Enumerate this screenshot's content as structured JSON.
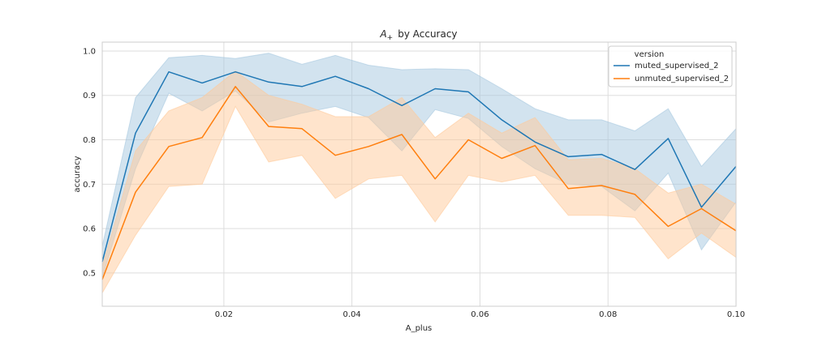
{
  "chart_data": {
    "type": "line",
    "title_main": "A",
    "title_sub": "+",
    "title_rest": "by Accuracy",
    "xlabel": "A_plus",
    "ylabel": "accuracy",
    "xlim": [
      0.001,
      0.1
    ],
    "ylim": [
      0.425,
      1.02
    ],
    "xticks": [
      0.02,
      0.04,
      0.06,
      0.08,
      0.1
    ],
    "xtick_labels": [
      "0.02",
      "0.04",
      "0.06",
      "0.08",
      "0.10"
    ],
    "yticks": [
      0.5,
      0.6,
      0.7,
      0.8,
      0.9,
      1.0
    ],
    "ytick_labels": [
      "0.5",
      "0.6",
      "0.7",
      "0.8",
      "0.9",
      "1.0"
    ],
    "grid": true,
    "legend": {
      "title": "version",
      "placement": "top-right"
    },
    "x": [
      0.001,
      0.0062,
      0.0114,
      0.0166,
      0.0218,
      0.027,
      0.0322,
      0.0374,
      0.0426,
      0.0478,
      0.053,
      0.0582,
      0.0634,
      0.0686,
      0.0738,
      0.079,
      0.0842,
      0.0894,
      0.0946,
      0.1
    ],
    "series": [
      {
        "name": "muted_supervised_2",
        "color": "#1f77b4",
        "band_color": "#a6c8e0",
        "values": [
          0.525,
          0.815,
          0.953,
          0.928,
          0.953,
          0.93,
          0.92,
          0.943,
          0.915,
          0.877,
          0.915,
          0.908,
          0.845,
          0.795,
          0.762,
          0.767,
          0.733,
          0.803,
          0.648,
          0.74
        ],
        "lower": [
          0.49,
          0.735,
          0.905,
          0.865,
          0.91,
          0.84,
          0.86,
          0.875,
          0.85,
          0.775,
          0.868,
          0.848,
          0.785,
          0.735,
          0.7,
          0.695,
          0.64,
          0.725,
          0.552,
          0.66
        ],
        "upper": [
          0.56,
          0.895,
          0.985,
          0.99,
          0.983,
          0.995,
          0.97,
          0.99,
          0.968,
          0.958,
          0.96,
          0.958,
          0.915,
          0.87,
          0.845,
          0.845,
          0.82,
          0.87,
          0.74,
          0.825
        ]
      },
      {
        "name": "unmuted_supervised_2",
        "color": "#ff7f0e",
        "band_color": "#ffc999",
        "values": [
          0.485,
          0.682,
          0.785,
          0.805,
          0.92,
          0.83,
          0.825,
          0.765,
          0.785,
          0.812,
          0.712,
          0.8,
          0.758,
          0.787,
          0.69,
          0.697,
          0.677,
          0.605,
          0.645,
          0.595
        ],
        "lower": [
          0.455,
          0.585,
          0.695,
          0.7,
          0.875,
          0.75,
          0.765,
          0.668,
          0.712,
          0.72,
          0.615,
          0.72,
          0.705,
          0.72,
          0.63,
          0.63,
          0.625,
          0.532,
          0.59,
          0.535
        ],
        "upper": [
          0.515,
          0.775,
          0.865,
          0.895,
          0.955,
          0.9,
          0.88,
          0.852,
          0.852,
          0.895,
          0.805,
          0.86,
          0.815,
          0.85,
          0.755,
          0.758,
          0.735,
          0.68,
          0.7,
          0.655
        ]
      }
    ]
  }
}
